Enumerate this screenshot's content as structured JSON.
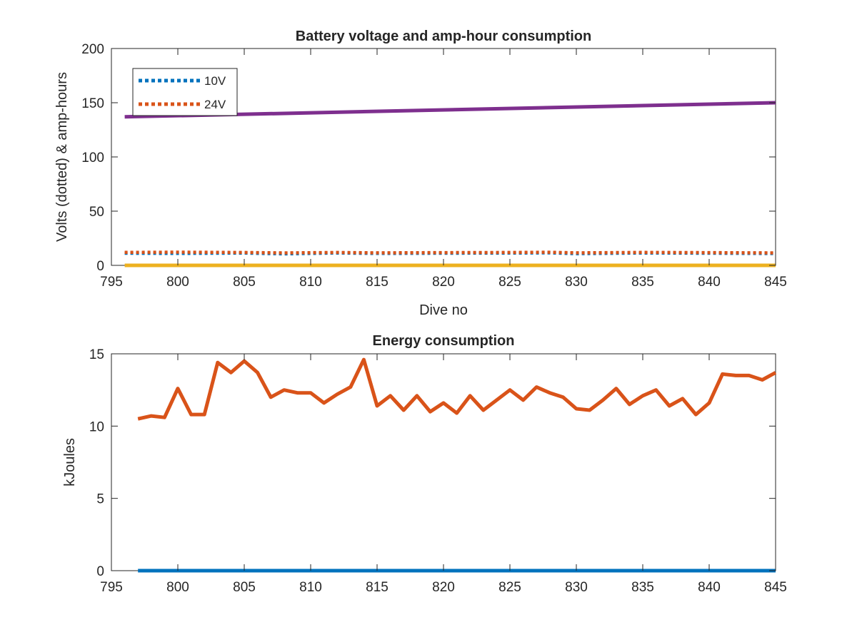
{
  "chart_data": [
    {
      "type": "line",
      "title": "Battery voltage and amp-hour consumption",
      "xlabel": "Dive no",
      "ylabel": "Volts (dotted) & amp-hours",
      "xlim": [
        795,
        845
      ],
      "ylim": [
        0,
        200
      ],
      "xticks": [
        "795",
        "800",
        "805",
        "810",
        "815",
        "820",
        "825",
        "830",
        "835",
        "840",
        "845"
      ],
      "yticks": [
        "0",
        "50",
        "100",
        "150",
        "200"
      ],
      "grid": false,
      "legend_position": "top-left",
      "series": [
        {
          "name": "10V",
          "style": "dotted",
          "color": "#0072BD",
          "x": [
            796,
            800,
            805,
            808,
            812,
            815,
            820,
            825,
            828,
            830,
            835,
            840,
            845
          ],
          "y": [
            11.2,
            11.0,
            11.3,
            10.6,
            11.4,
            11.0,
            11.2,
            11.3,
            11.5,
            10.8,
            11.4,
            11.2,
            10.9
          ]
        },
        {
          "name": "24V",
          "style": "dotted",
          "color": "#D95319",
          "x": [
            796,
            800,
            805,
            808,
            812,
            815,
            820,
            825,
            828,
            830,
            835,
            840,
            845
          ],
          "y": [
            12.0,
            12.2,
            11.9,
            11.5,
            11.9,
            11.6,
            11.8,
            11.9,
            12.1,
            11.6,
            12.0,
            11.8,
            11.5
          ]
        },
        {
          "style": "solid",
          "color": "#7E2F8E",
          "x": [
            796,
            845
          ],
          "y": [
            137,
            150
          ]
        },
        {
          "style": "solid",
          "color": "#EDB120",
          "x": [
            796,
            845
          ],
          "y": [
            0,
            0
          ]
        }
      ]
    },
    {
      "type": "line",
      "title": "Energy consumption",
      "xlabel": "",
      "ylabel": "kJoules",
      "xlim": [
        795,
        845
      ],
      "ylim": [
        0,
        15
      ],
      "xticks": [
        "795",
        "800",
        "805",
        "810",
        "815",
        "820",
        "825",
        "830",
        "835",
        "840",
        "845"
      ],
      "yticks": [
        "0",
        "5",
        "10",
        "15"
      ],
      "grid": false,
      "series": [
        {
          "style": "solid",
          "color": "#D95319",
          "x": [
            797,
            798,
            799,
            800,
            801,
            802,
            803,
            804,
            805,
            806,
            807,
            808,
            809,
            810,
            811,
            812,
            813,
            814,
            815,
            816,
            817,
            818,
            819,
            820,
            821,
            822,
            823,
            824,
            825,
            826,
            827,
            828,
            829,
            830,
            831,
            832,
            833,
            834,
            835,
            836,
            837,
            838,
            839,
            840,
            841,
            842,
            843,
            844,
            845
          ],
          "y": [
            10.5,
            10.7,
            10.6,
            12.6,
            10.8,
            10.8,
            14.4,
            13.7,
            14.5,
            13.7,
            12.0,
            12.5,
            12.3,
            12.3,
            11.6,
            12.2,
            12.7,
            14.6,
            11.4,
            12.1,
            11.1,
            12.1,
            11.0,
            11.6,
            10.9,
            12.1,
            11.1,
            11.8,
            12.5,
            11.8,
            12.7,
            12.3,
            12.0,
            11.2,
            11.1,
            11.8,
            12.6,
            11.5,
            12.1,
            12.5,
            11.4,
            11.9,
            10.8,
            11.6,
            13.6,
            13.5,
            13.5,
            13.2,
            13.7
          ]
        },
        {
          "style": "solid",
          "color": "#0072BD",
          "x": [
            797,
            845
          ],
          "y": [
            0,
            0
          ]
        }
      ]
    }
  ]
}
